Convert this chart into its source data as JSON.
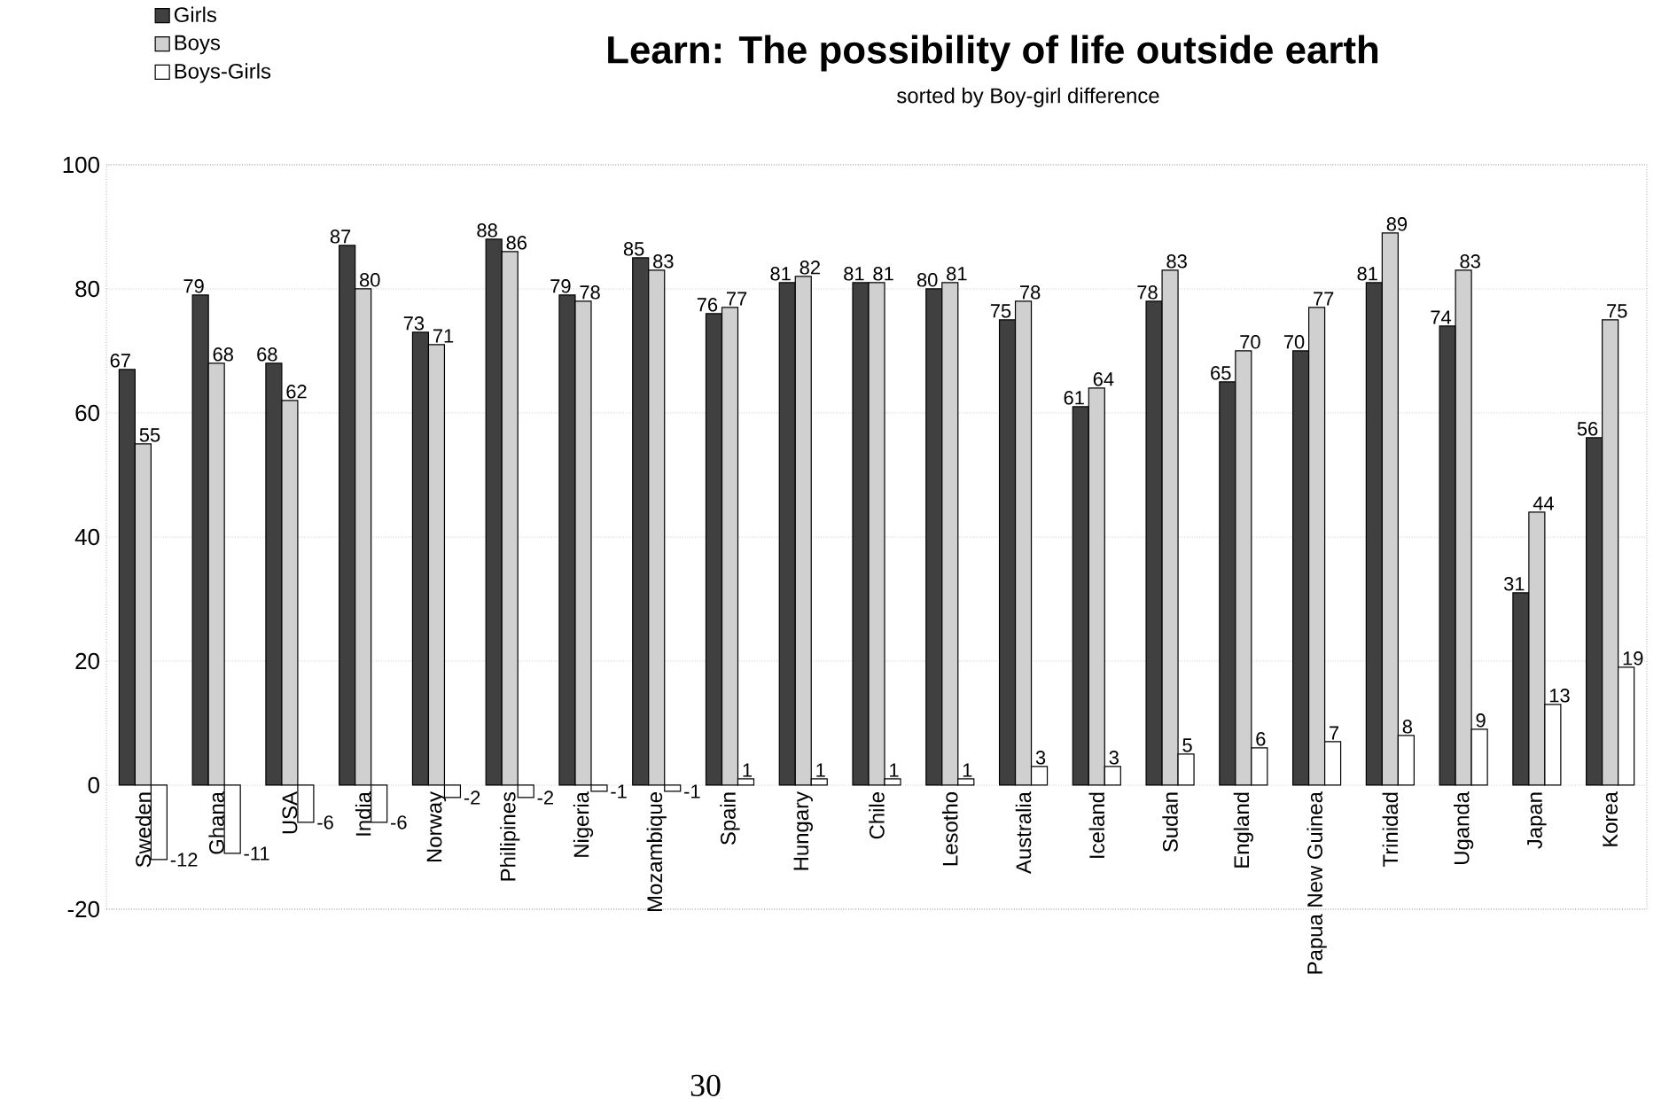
{
  "chart_data": {
    "type": "bar",
    "title": "Learn: The possibility of life outside earth",
    "subtitle": "sorted by Boy-girl difference",
    "categories": [
      "Sweden",
      "Ghana",
      "USA",
      "India",
      "Norway",
      "Philipines",
      "Nigeria",
      "Mozambique",
      "Spain",
      "Hungary",
      "Chile",
      "Lesotho",
      "Australia",
      "Iceland",
      "Sudan",
      "England",
      "Papua New Guinea",
      "Trinidad",
      "Uganda",
      "Japan",
      "Korea"
    ],
    "series": [
      {
        "name": "Girls",
        "color": "#404040",
        "values": [
          67,
          79,
          68,
          87,
          73,
          88,
          79,
          85,
          76,
          81,
          81,
          80,
          75,
          61,
          78,
          65,
          70,
          81,
          74,
          31,
          56
        ]
      },
      {
        "name": "Boys",
        "color": "#d0d0d0",
        "values": [
          55,
          68,
          62,
          80,
          71,
          86,
          78,
          83,
          77,
          82,
          81,
          81,
          78,
          64,
          83,
          70,
          77,
          89,
          83,
          44,
          75
        ]
      },
      {
        "name": "Boys-Girls",
        "color": "#ffffff",
        "values": [
          -12,
          -11,
          -6,
          -6,
          -2,
          -2,
          -1,
          -1,
          1,
          1,
          1,
          1,
          3,
          3,
          5,
          6,
          7,
          8,
          9,
          13,
          19
        ]
      }
    ],
    "ylim": [
      -20,
      100
    ],
    "yticks": [
      -20,
      0,
      20,
      40,
      60,
      80,
      100
    ],
    "grid": "y",
    "legend": "top left",
    "data_labels": true,
    "annotations": [
      "30"
    ]
  }
}
